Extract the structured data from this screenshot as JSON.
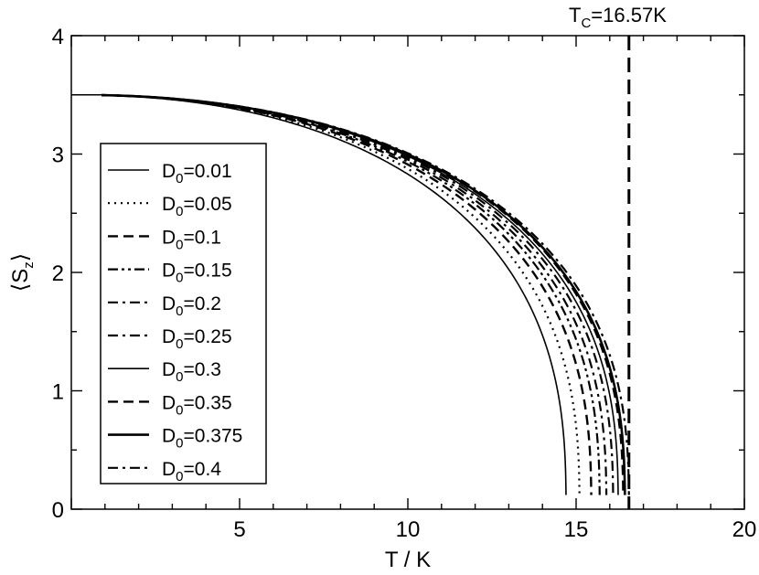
{
  "chart_data": {
    "type": "line",
    "xlabel": "T / K",
    "ylabel": "⟨S",
    "ylabel_sub": "z",
    "ylabel_close": "⟩",
    "xlim": [
      0,
      20
    ],
    "ylim": [
      0,
      4
    ],
    "xticks": [
      "5",
      "10",
      "15",
      "20"
    ],
    "yticks": [
      "0",
      "1",
      "2",
      "3",
      "4"
    ],
    "grid": false,
    "legend_position": "lower-left",
    "annotation": {
      "label_main": "T",
      "label_sub": "C",
      "label_rest": "=16.57K",
      "x": 16.57
    },
    "series": [
      {
        "label": "D",
        "sub": "0",
        "name": "=0.01",
        "tc": 14.7,
        "style": "solid"
      },
      {
        "label": "D",
        "sub": "0",
        "name": "=0.05",
        "tc": 15.1,
        "style": "dotted"
      },
      {
        "label": "D",
        "sub": "0",
        "name": "=0.1",
        "tc": 15.45,
        "style": "dashed"
      },
      {
        "label": "D",
        "sub": "0",
        "name": "=0.15",
        "tc": 15.7,
        "style": "dashdotdot"
      },
      {
        "label": "D",
        "sub": "0",
        "name": "=0.2",
        "tc": 15.9,
        "style": "dashdot"
      },
      {
        "label": "D",
        "sub": "0",
        "name": "=0.25",
        "tc": 16.1,
        "style": "dashdot"
      },
      {
        "label": "D",
        "sub": "0",
        "name": "=0.3",
        "tc": 16.25,
        "style": "solid"
      },
      {
        "label": "D",
        "sub": "0",
        "name": "=0.35",
        "tc": 16.4,
        "style": "dashed"
      },
      {
        "label": "D",
        "sub": "0",
        "name": "=0.375",
        "tc": 16.45,
        "style": "solid-thick"
      },
      {
        "label": "D",
        "sub": "0",
        "name": "=0.4",
        "tc": 16.57,
        "style": "dashdot"
      }
    ],
    "saturation": 3.5,
    "t_start": 0.9
  }
}
